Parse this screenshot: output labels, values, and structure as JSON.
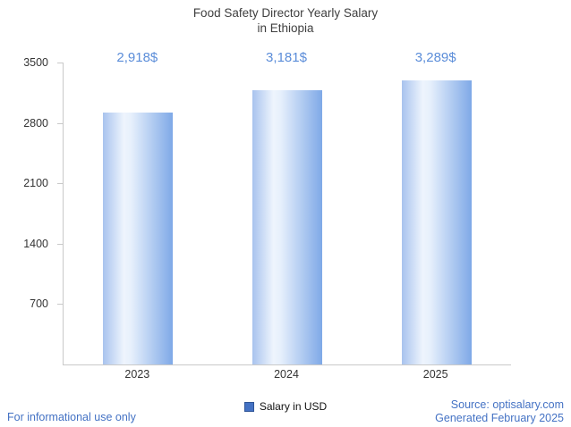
{
  "title_lines": [
    "Food Safety Director Yearly Salary",
    "in Ethiopia"
  ],
  "chart_data": {
    "type": "bar",
    "title": "Food Safety Director Yearly Salary in Ethiopia",
    "categories": [
      "2023",
      "2024",
      "2025"
    ],
    "values": [
      2918,
      3181,
      3289
    ],
    "value_labels": [
      "2,918$",
      "3,181$",
      "3,289$"
    ],
    "series_name": "Salary in USD",
    "xlabel": "",
    "ylabel": "",
    "ylim": [
      0,
      3500
    ],
    "yticks": [
      700,
      1400,
      2100,
      2800,
      3500
    ],
    "grid": false,
    "legend_position": "bottom"
  },
  "legend": {
    "label": "Salary in USD"
  },
  "footer": {
    "left": "For informational use only",
    "source": "Source: optisalary.com",
    "generated": "Generated February 2025"
  },
  "colors": {
    "value_label": "#5b8dd9",
    "footer_text": "#4472c4",
    "legend_swatch": "#4472c4",
    "axis": "#c9c9c9",
    "title_text": "#3f3f3f",
    "tick_text": "#333333",
    "bar_gradient_left": "#a8c3ee",
    "bar_gradient_mid": "#eef4fd",
    "bar_gradient_right": "#7fa9e7"
  }
}
